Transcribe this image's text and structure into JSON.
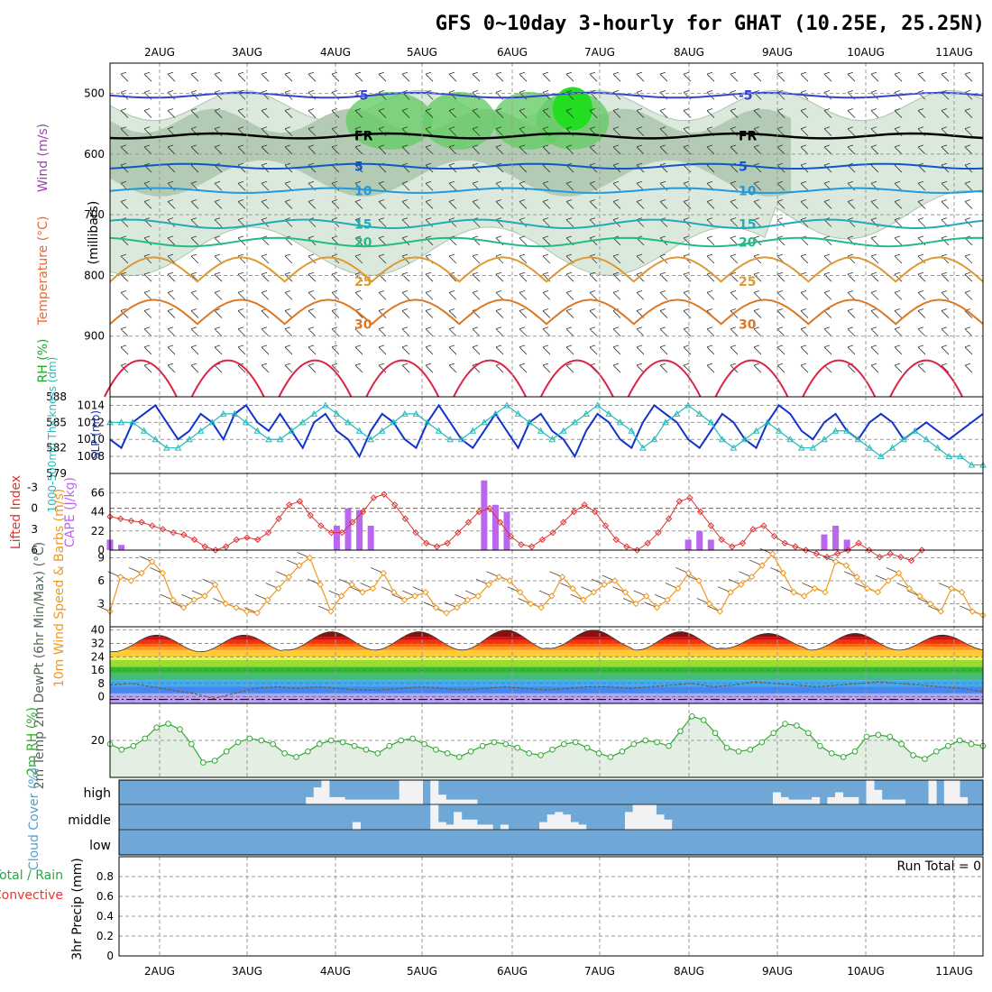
{
  "title": "GFS 0~10day 3-hourly for GHAT (10.25E, 25.25N)",
  "dates": [
    "2AUG",
    "3AUG",
    "4AUG",
    "5AUG",
    "6AUG",
    "7AUG",
    "8AUG",
    "9AUG",
    "10AUG",
    "11AUG"
  ],
  "chart_data": [
    {
      "type": "heatmap",
      "panel": "upper-air",
      "ylabel": "(millibars)",
      "side_labels": [
        "Wind (m/s)",
        "Temperature (°C)",
        "RH (%)"
      ],
      "yticks": [
        500,
        600,
        700,
        800,
        900
      ],
      "ylim": [
        1000,
        450
      ],
      "freezing_label": "FR",
      "isotherms": [
        {
          "label": "-5",
          "color": "#3344cc",
          "p": 503
        },
        {
          "label": "FR",
          "color": "#000000",
          "p": 570
        },
        {
          "label": "5",
          "color": "#1155cc",
          "p": 620
        },
        {
          "label": "10",
          "color": "#2299dd",
          "p": 660
        },
        {
          "label": "15",
          "color": "#22aabb",
          "p": 715
        },
        {
          "label": "20",
          "color": "#22bb88",
          "p": 745
        },
        {
          "label": "25",
          "color": "#dd9933",
          "p": 810
        },
        {
          "label": "30",
          "color": "#dd7722",
          "p": 880
        }
      ],
      "contour_labels": [
        "-5",
        "FR",
        "5",
        "10",
        "15",
        "20",
        "25",
        "30"
      ]
    },
    {
      "type": "line",
      "panel": "slp-thickness",
      "series": [
        {
          "name": "SLP (mb)",
          "color": "#1133cc",
          "values": [
            1010,
            1009,
            1012,
            1013,
            1014,
            1012,
            1010,
            1011,
            1013,
            1012,
            1010,
            1013,
            1014,
            1012,
            1011,
            1013,
            1011,
            1009,
            1012,
            1013,
            1011,
            1010,
            1008,
            1011,
            1013,
            1012,
            1010,
            1009,
            1012,
            1014,
            1012,
            1010,
            1009,
            1011,
            1013,
            1011,
            1009,
            1012,
            1013,
            1011,
            1010,
            1008,
            1011,
            1013,
            1012,
            1010,
            1009,
            1012,
            1014,
            1013,
            1012,
            1010,
            1009,
            1011,
            1013,
            1012,
            1010,
            1009,
            1012,
            1014,
            1013,
            1011,
            1010,
            1012,
            1013,
            1011,
            1010,
            1012,
            1013,
            1012,
            1010,
            1011,
            1012,
            1011,
            1010,
            1011,
            1012,
            1013
          ]
        },
        {
          "name": "1000-500mb Thickness (dm)",
          "color": "#22bbbb",
          "values": [
            585,
            585,
            585,
            584,
            583,
            582,
            582,
            583,
            584,
            585,
            586,
            586,
            585,
            584,
            583,
            583,
            584,
            585,
            586,
            587,
            586,
            585,
            584,
            583,
            584,
            585,
            586,
            586,
            585,
            584,
            583,
            583,
            584,
            585,
            586,
            587,
            586,
            585,
            584,
            583,
            584,
            585,
            586,
            587,
            586,
            585,
            584,
            582,
            583,
            585,
            586,
            587,
            586,
            585,
            583,
            582,
            583,
            584,
            585,
            584,
            583,
            582,
            582,
            583,
            584,
            584,
            583,
            582,
            581,
            582,
            583,
            584,
            583,
            582,
            581,
            581,
            580,
            580
          ]
        }
      ],
      "yticks_left": [
        588,
        585,
        582,
        579
      ],
      "yticks_right": [
        1014,
        1012,
        1010,
        1008
      ],
      "ylim_left": [
        579,
        588
      ],
      "ylim_right": [
        1006,
        1015
      ]
    },
    {
      "type": "bar",
      "panel": "li-cape",
      "ylabel_left": "Lifted Index",
      "ylabel_right": "CAPE (J/kg)",
      "yticks_left": [
        "-3",
        "0",
        "3",
        "6"
      ],
      "yticks_right": [
        "66",
        "44",
        "22",
        "0"
      ],
      "cape_values": [
        12,
        6,
        0,
        0,
        0,
        0,
        0,
        0,
        0,
        0,
        0,
        0,
        0,
        0,
        0,
        0,
        0,
        0,
        0,
        0,
        28,
        48,
        46,
        28,
        0,
        0,
        0,
        0,
        0,
        0,
        0,
        0,
        0,
        80,
        52,
        44,
        0,
        0,
        0,
        0,
        0,
        0,
        0,
        0,
        0,
        0,
        0,
        0,
        0,
        0,
        0,
        12,
        22,
        12,
        0,
        0,
        0,
        0,
        0,
        0,
        0,
        0,
        0,
        18,
        28,
        12,
        0,
        0,
        0,
        0,
        0,
        0,
        0,
        0,
        0,
        0,
        0,
        0
      ],
      "li_values": [
        1.2,
        1.5,
        1.8,
        2.0,
        2.5,
        3.0,
        3.5,
        3.8,
        4.5,
        5.5,
        6.0,
        5.5,
        4.5,
        4.2,
        4.5,
        3.5,
        1.5,
        -0.5,
        -1.0,
        1.0,
        2.5,
        3.5,
        3.5,
        2.0,
        0.5,
        -1.5,
        -2.0,
        -0.5,
        1.5,
        3.5,
        5.0,
        5.5,
        5.0,
        3.5,
        2.0,
        0.5,
        0.0,
        2.0,
        4.0,
        5.2,
        5.5,
        4.5,
        3.5,
        2.0,
        0.5,
        -0.5,
        0.5,
        2.5,
        4.5,
        5.5,
        6.0,
        5.0,
        3.5,
        1.5,
        -1.0,
        -1.5,
        0.5,
        2.5,
        4.5,
        5.5,
        5.0,
        3.0,
        2.5,
        4.0,
        5.0,
        5.5,
        6.0,
        6.5,
        7.0,
        6.5,
        6.0,
        5.0,
        6.0,
        7.0,
        6.5,
        7.0,
        7.5,
        6.0
      ],
      "li_color": "#dd3333",
      "cape_color": "#bb66ee",
      "zero_line_color": "#dd3333"
    },
    {
      "type": "line",
      "panel": "wind10m",
      "ylabel": "10m Wind Speed & Barbs (m/s)",
      "yticks": [
        3,
        6,
        9
      ],
      "ylim": [
        0,
        10
      ],
      "series": [
        {
          "name": "10m Wind Speed",
          "color": "#ee9922",
          "values": [
            2.0,
            6.5,
            6.0,
            7.0,
            8.5,
            7.0,
            3.5,
            2.5,
            3.5,
            4.0,
            5.5,
            3.0,
            2.5,
            2.0,
            1.8,
            3.5,
            5.0,
            6.5,
            8.0,
            9.0,
            5.5,
            2.0,
            4.0,
            5.5,
            4.5,
            5.0,
            7.0,
            4.5,
            3.5,
            4.0,
            4.5,
            2.5,
            1.8,
            2.5,
            3.5,
            4.0,
            5.5,
            6.5,
            6.0,
            4.5,
            3.0,
            2.5,
            4.0,
            6.5,
            5.0,
            3.5,
            4.5,
            5.5,
            6.0,
            4.5,
            3.0,
            4.0,
            2.5,
            3.5,
            5.0,
            7.0,
            6.0,
            3.0,
            2.0,
            4.5,
            5.5,
            6.5,
            8.0,
            9.5,
            7.0,
            4.5,
            4.0,
            5.0,
            4.5,
            8.5,
            8.0,
            6.5,
            5.0,
            4.5,
            6.0,
            7.0,
            5.0,
            4.0,
            3.0,
            2.0,
            5.0,
            4.5,
            2.0,
            1.5
          ]
        }
      ]
    },
    {
      "type": "area",
      "panel": "temp2m",
      "ylabel": "2m Temp 2m DewPt (6hr Min/Max) (°C)",
      "yticks": [
        0,
        8,
        16,
        24,
        32,
        40
      ],
      "ylim": [
        -4,
        42
      ],
      "band_colors": [
        "#b9a0f0",
        "#4488ee",
        "#44aaee",
        "#44bb77",
        "#33bb33",
        "#99dd33",
        "#eeee55",
        "#ffcc33",
        "#ff9922",
        "#ff6611",
        "#ee3311",
        "#cc1111",
        "#881111"
      ],
      "band_edges": [
        -4,
        2,
        6,
        10,
        14,
        18,
        22,
        24,
        28,
        30,
        32,
        34,
        36,
        42
      ],
      "temp_max_peaks": [
        37,
        37,
        39,
        39,
        40,
        40,
        39,
        38,
        38,
        37
      ],
      "temp_min_troughs": [
        27,
        27,
        28,
        28,
        28,
        29,
        28,
        29,
        28,
        28
      ],
      "dewpoint": [
        7,
        8,
        6,
        4,
        2,
        -1,
        2,
        5,
        6,
        5,
        6,
        5,
        4,
        4,
        5,
        6,
        5,
        4,
        5,
        6,
        5,
        4,
        5,
        6,
        6,
        5,
        6,
        7,
        8,
        6,
        7,
        9,
        8,
        7,
        6,
        7,
        8,
        9,
        8,
        7,
        6,
        5,
        3
      ]
    },
    {
      "type": "area",
      "panel": "rh2m",
      "ylabel": "2m RH (%)",
      "yticks": [
        20
      ],
      "ylim": [
        0,
        40
      ],
      "series": [
        {
          "name": "2m RH",
          "color": "#33aa33",
          "values": [
            18,
            15,
            17,
            21,
            27,
            29,
            26,
            18,
            8,
            9,
            14,
            19,
            21,
            20,
            18,
            13,
            11,
            14,
            18,
            20,
            19,
            17,
            15,
            13,
            17,
            20,
            21,
            18,
            15,
            13,
            11,
            14,
            17,
            19,
            18,
            16,
            13,
            12,
            15,
            18,
            19,
            16,
            13,
            11,
            14,
            18,
            20,
            19,
            17,
            25,
            33,
            31,
            24,
            16,
            14,
            15,
            19,
            24,
            29,
            28,
            24,
            17,
            13,
            11,
            14,
            22,
            23,
            22,
            18,
            12,
            10,
            14,
            17,
            20,
            18,
            17
          ]
        }
      ]
    },
    {
      "type": "bar",
      "panel": "cloud",
      "ylabel": "Cloud Cover (%)",
      "levels": [
        "high",
        "middle",
        "low"
      ],
      "high": [
        0,
        0,
        0,
        0,
        0,
        0,
        0,
        0,
        0,
        0,
        0,
        0,
        0,
        0,
        0,
        0,
        0,
        0,
        0,
        0,
        0,
        0,
        0,
        0,
        30,
        70,
        100,
        30,
        30,
        20,
        20,
        20,
        20,
        20,
        20,
        20,
        100,
        100,
        100,
        0,
        100,
        40,
        20,
        20,
        20,
        20,
        0,
        0,
        0,
        0,
        0,
        0,
        0,
        0,
        0,
        0,
        0,
        0,
        0,
        0,
        0,
        0,
        0,
        0,
        0,
        0,
        0,
        0,
        0,
        0,
        0,
        0,
        0,
        0,
        0,
        0,
        0,
        0,
        0,
        0,
        0,
        0,
        0,
        0,
        50,
        30,
        20,
        20,
        20,
        30,
        0,
        30,
        50,
        30,
        30,
        0,
        100,
        60,
        20,
        20,
        20,
        0,
        0,
        0,
        100,
        0,
        100,
        100,
        30,
        0,
        0
      ],
      "middle": [
        0,
        0,
        0,
        0,
        0,
        0,
        0,
        0,
        0,
        0,
        0,
        0,
        0,
        0,
        0,
        0,
        0,
        0,
        0,
        0,
        0,
        0,
        0,
        0,
        0,
        0,
        0,
        0,
        0,
        0,
        30,
        0,
        0,
        0,
        0,
        0,
        0,
        0,
        0,
        0,
        100,
        30,
        20,
        70,
        40,
        40,
        20,
        20,
        0,
        20,
        0,
        0,
        0,
        0,
        30,
        60,
        70,
        60,
        30,
        20,
        0,
        0,
        0,
        0,
        0,
        70,
        100,
        100,
        100,
        60,
        40,
        0,
        0,
        0,
        0,
        0,
        0,
        0,
        0,
        0,
        0,
        0,
        0,
        0,
        0,
        0,
        0,
        0,
        0,
        0,
        0,
        0,
        0,
        0,
        0,
        0,
        0,
        0,
        0,
        0,
        0,
        0,
        0,
        0,
        0,
        0,
        0,
        0,
        0,
        0,
        0
      ],
      "low": [],
      "background": "#6fa8d6",
      "cloud_color": "#f2f2f4"
    },
    {
      "type": "bar",
      "panel": "precip",
      "ylabel": "3hr Precip (mm)",
      "side_labels": [
        "Total / Rain",
        "Convective"
      ],
      "run_total": "Run Total = 0",
      "yticks": [
        "0",
        "0.2",
        "0.4",
        "0.6",
        "0.8"
      ],
      "ylim": [
        0,
        1
      ],
      "values": []
    }
  ]
}
